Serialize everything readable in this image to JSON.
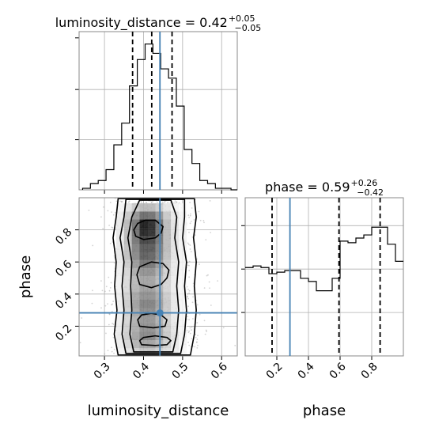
{
  "chart_data": {
    "type": "corner",
    "parameters": [
      "luminosity_distance",
      "phase"
    ],
    "grid": true,
    "truth": {
      "luminosity_distance": 0.442,
      "phase": 0.283
    },
    "truth_color": "#4682b4",
    "panels": [
      {
        "panel": "hist-luminosity_distance",
        "type": "step-histogram",
        "title": {
          "main": "luminosity_distance = 0.42",
          "sup": "+0.05",
          "sub": "−0.05"
        },
        "x_range": [
          0.235,
          0.64
        ],
        "quantiles": [
          0.372,
          0.421,
          0.473
        ],
        "bin_edges": [
          0.244,
          0.264,
          0.284,
          0.304,
          0.324,
          0.344,
          0.364,
          0.384,
          0.404,
          0.424,
          0.444,
          0.464,
          0.484,
          0.504,
          0.524,
          0.544,
          0.564,
          0.584,
          0.604,
          0.624,
          0.64
        ],
        "counts": [
          0.01,
          0.04,
          0.06,
          0.13,
          0.29,
          0.43,
          0.67,
          0.84,
          0.94,
          0.88,
          0.78,
          0.72,
          0.54,
          0.26,
          0.17,
          0.06,
          0.04,
          0.01,
          0.01,
          0.0
        ],
        "y_max": 1.0
      },
      {
        "panel": "hist-phase",
        "type": "step-histogram",
        "title": {
          "main": "phase = 0.59",
          "sup": "+0.26",
          "sub": "−0.42"
        },
        "x_range": [
          0.0,
          1.0
        ],
        "x_ticks": [
          0.2,
          0.4,
          0.6,
          0.8
        ],
        "quantiles": [
          0.17,
          0.593,
          0.853
        ],
        "bin_edges": [
          0.0,
          0.05,
          0.1,
          0.15,
          0.2,
          0.25,
          0.3,
          0.35,
          0.4,
          0.45,
          0.5,
          0.55,
          0.6,
          0.65,
          0.7,
          0.75,
          0.8,
          0.85,
          0.9,
          0.95,
          1.0
        ],
        "counts": [
          0.57,
          0.58,
          0.57,
          0.53,
          0.54,
          0.55,
          0.55,
          0.5,
          0.48,
          0.42,
          0.42,
          0.5,
          0.74,
          0.73,
          0.76,
          0.78,
          0.83,
          0.83,
          0.72,
          0.61
        ],
        "y_max": 1.0
      },
      {
        "panel": "2d-phase-vs-luminosity_distance",
        "type": "contour-density",
        "x": "luminosity_distance",
        "y": "phase",
        "x_range": [
          0.235,
          0.64
        ],
        "y_range": [
          0.015,
          1.0
        ],
        "x_ticks": [
          0.3,
          0.4,
          0.5,
          0.6
        ],
        "y_ticks": [
          0.2,
          0.4,
          0.6,
          0.8
        ],
        "density_grid": {
          "x_edges": [
            0.33,
            0.35,
            0.37,
            0.39,
            0.41,
            0.43,
            0.45,
            0.47,
            0.49,
            0.51
          ],
          "y_edges": [
            0.015,
            0.065,
            0.115,
            0.165,
            0.215,
            0.265,
            0.315,
            0.365,
            0.415,
            0.465,
            0.515,
            0.565,
            0.615,
            0.665,
            0.715,
            0.765,
            0.815,
            0.865,
            0.915,
            0.965
          ],
          "values": [
            [
              0.05,
              0.12,
              0.2,
              0.25,
              0.25,
              0.2,
              0.14,
              0.08,
              0.03
            ],
            [
              0.08,
              0.18,
              0.32,
              0.4,
              0.4,
              0.32,
              0.2,
              0.1,
              0.04
            ],
            [
              0.1,
              0.22,
              0.4,
              0.52,
              0.52,
              0.4,
              0.24,
              0.12,
              0.05
            ],
            [
              0.08,
              0.2,
              0.36,
              0.48,
              0.48,
              0.38,
              0.22,
              0.1,
              0.04
            ],
            [
              0.07,
              0.18,
              0.34,
              0.46,
              0.46,
              0.34,
              0.2,
              0.09,
              0.04
            ],
            [
              0.07,
              0.2,
              0.38,
              0.5,
              0.5,
              0.38,
              0.22,
              0.1,
              0.04
            ],
            [
              0.08,
              0.22,
              0.42,
              0.55,
              0.55,
              0.42,
              0.24,
              0.1,
              0.04
            ],
            [
              0.07,
              0.2,
              0.38,
              0.48,
              0.48,
              0.38,
              0.22,
              0.1,
              0.04
            ],
            [
              0.06,
              0.16,
              0.32,
              0.42,
              0.42,
              0.32,
              0.18,
              0.08,
              0.03
            ],
            [
              0.06,
              0.16,
              0.3,
              0.4,
              0.4,
              0.3,
              0.18,
              0.08,
              0.03
            ],
            [
              0.07,
              0.18,
              0.36,
              0.48,
              0.48,
              0.36,
              0.2,
              0.09,
              0.04
            ],
            [
              0.08,
              0.22,
              0.44,
              0.6,
              0.6,
              0.44,
              0.24,
              0.1,
              0.04
            ],
            [
              0.1,
              0.28,
              0.52,
              0.7,
              0.68,
              0.52,
              0.28,
              0.12,
              0.05
            ],
            [
              0.1,
              0.28,
              0.55,
              0.72,
              0.72,
              0.55,
              0.3,
              0.12,
              0.05
            ],
            [
              0.1,
              0.3,
              0.6,
              0.82,
              0.8,
              0.6,
              0.3,
              0.12,
              0.05
            ],
            [
              0.1,
              0.3,
              0.62,
              0.95,
              0.9,
              0.62,
              0.3,
              0.12,
              0.05
            ],
            [
              0.1,
              0.3,
              0.6,
              0.98,
              0.92,
              0.62,
              0.3,
              0.12,
              0.05
            ],
            [
              0.08,
              0.24,
              0.46,
              0.64,
              0.62,
              0.46,
              0.24,
              0.1,
              0.04
            ],
            [
              0.04,
              0.12,
              0.22,
              0.3,
              0.3,
              0.22,
              0.12,
              0.05,
              0.02
            ]
          ]
        },
        "contours": [
          [
            [
              0.375,
              0.04
            ],
            [
              0.365,
              0.15
            ],
            [
              0.37,
              0.3
            ],
            [
              0.367,
              0.45
            ],
            [
              0.37,
              0.6
            ],
            [
              0.36,
              0.75
            ],
            [
              0.37,
              0.88
            ],
            [
              0.39,
              0.985
            ],
            [
              0.47,
              0.985
            ],
            [
              0.485,
              0.88
            ],
            [
              0.48,
              0.75
            ],
            [
              0.49,
              0.6
            ],
            [
              0.485,
              0.45
            ],
            [
              0.49,
              0.3
            ],
            [
              0.485,
              0.15
            ],
            [
              0.475,
              0.04
            ]
          ],
          [
            [
              0.355,
              0.03
            ],
            [
              0.345,
              0.15
            ],
            [
              0.35,
              0.3
            ],
            [
              0.345,
              0.45
            ],
            [
              0.35,
              0.6
            ],
            [
              0.34,
              0.75
            ],
            [
              0.35,
              0.88
            ],
            [
              0.355,
              0.99
            ],
            [
              0.505,
              0.99
            ],
            [
              0.505,
              0.88
            ],
            [
              0.5,
              0.75
            ],
            [
              0.51,
              0.6
            ],
            [
              0.505,
              0.45
            ],
            [
              0.51,
              0.3
            ],
            [
              0.505,
              0.15
            ],
            [
              0.495,
              0.03
            ]
          ],
          [
            [
              0.335,
              0.02
            ],
            [
              0.325,
              0.15
            ],
            [
              0.332,
              0.3
            ],
            [
              0.326,
              0.45
            ],
            [
              0.33,
              0.6
            ],
            [
              0.322,
              0.75
            ],
            [
              0.33,
              0.88
            ],
            [
              0.335,
              0.995
            ],
            [
              0.53,
              0.995
            ],
            [
              0.535,
              0.88
            ],
            [
              0.528,
              0.75
            ],
            [
              0.535,
              0.6
            ],
            [
              0.53,
              0.45
            ],
            [
              0.535,
              0.3
            ],
            [
              0.53,
              0.15
            ],
            [
              0.52,
              0.02
            ]
          ],
          [
            [
              0.395,
              0.085
            ],
            [
              0.39,
              0.11
            ],
            [
              0.4,
              0.13
            ],
            [
              0.43,
              0.14
            ],
            [
              0.46,
              0.13
            ],
            [
              0.47,
              0.11
            ],
            [
              0.46,
              0.085
            ],
            [
              0.43,
              0.08
            ]
          ],
          [
            [
              0.39,
              0.2
            ],
            [
              0.385,
              0.24
            ],
            [
              0.395,
              0.27
            ],
            [
              0.42,
              0.28
            ],
            [
              0.445,
              0.27
            ],
            [
              0.46,
              0.24
            ],
            [
              0.455,
              0.2
            ],
            [
              0.425,
              0.19
            ]
          ],
          [
            [
              0.39,
              0.46
            ],
            [
              0.383,
              0.52
            ],
            [
              0.39,
              0.57
            ],
            [
              0.42,
              0.6
            ],
            [
              0.45,
              0.59
            ],
            [
              0.465,
              0.55
            ],
            [
              0.46,
              0.5
            ],
            [
              0.445,
              0.46
            ],
            [
              0.42,
              0.44
            ]
          ],
          [
            [
              0.38,
              0.76
            ],
            [
              0.375,
              0.8
            ],
            [
              0.385,
              0.84
            ],
            [
              0.405,
              0.86
            ],
            [
              0.43,
              0.86
            ],
            [
              0.45,
              0.82
            ],
            [
              0.445,
              0.78
            ],
            [
              0.43,
              0.75
            ],
            [
              0.4,
              0.74
            ]
          ]
        ],
        "scatter_sample_count": 1500,
        "scatter_color": "#9e9e9e"
      }
    ]
  },
  "axes": {
    "x_label_1": "luminosity_distance",
    "x_label_2": "phase",
    "y_label": "phase"
  }
}
